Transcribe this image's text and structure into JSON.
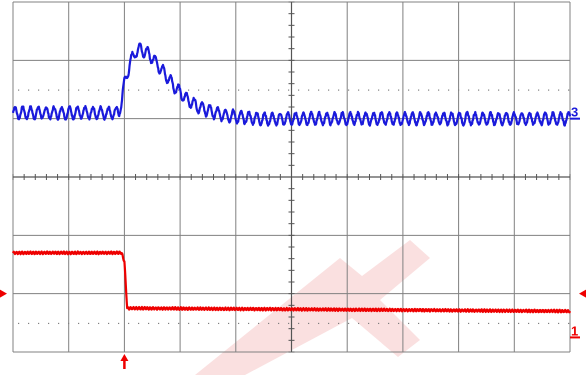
{
  "chart_data": {
    "type": "line",
    "title": "",
    "xlabel": "",
    "ylabel": "",
    "x_divisions": 10,
    "y_divisions": 6,
    "xlim": [
      0,
      10
    ],
    "ylim": [
      0,
      6
    ],
    "grid": true,
    "trigger_position_div": 2.0,
    "series": [
      {
        "label": "3",
        "color": "#1a1adb",
        "x": [
          0.0,
          1.9,
          1.95,
          2.0,
          2.1,
          2.2,
          2.3,
          2.5,
          2.7,
          2.9,
          3.1,
          3.3,
          3.5,
          3.7,
          3.9,
          4.1,
          4.3,
          4.6,
          5.0,
          6.0,
          7.0,
          8.0,
          9.0,
          10.0
        ],
        "y": [
          4.1,
          4.1,
          4.3,
          4.6,
          4.95,
          5.15,
          5.2,
          5.05,
          4.8,
          4.55,
          4.35,
          4.22,
          4.14,
          4.08,
          4.05,
          4.02,
          4.01,
          3.99,
          4.0,
          4.0,
          4.0,
          4.0,
          4.0,
          4.0
        ],
        "ripple_amplitude": 0.1,
        "ripple_period": 0.14
      },
      {
        "label": "1",
        "color": "#ee0000",
        "x": [
          0.0,
          1.95,
          2.0,
          2.05,
          2.15,
          10.0
        ],
        "y": [
          1.7,
          1.7,
          1.55,
          0.75,
          0.75,
          0.7
        ],
        "ripple_amplitude": 0.02,
        "ripple_period": 0.05
      }
    ],
    "channel_markers": [
      {
        "label": "3",
        "color": "#1a1adb",
        "level": 4.0
      },
      {
        "label": "1",
        "color": "#ee0000",
        "level": 0.25
      }
    ],
    "ground_marker_level": 1.0,
    "ground_marker_color": "#ee0000",
    "grid_color": "#808080",
    "watermark_color": "#f6c6c6"
  }
}
